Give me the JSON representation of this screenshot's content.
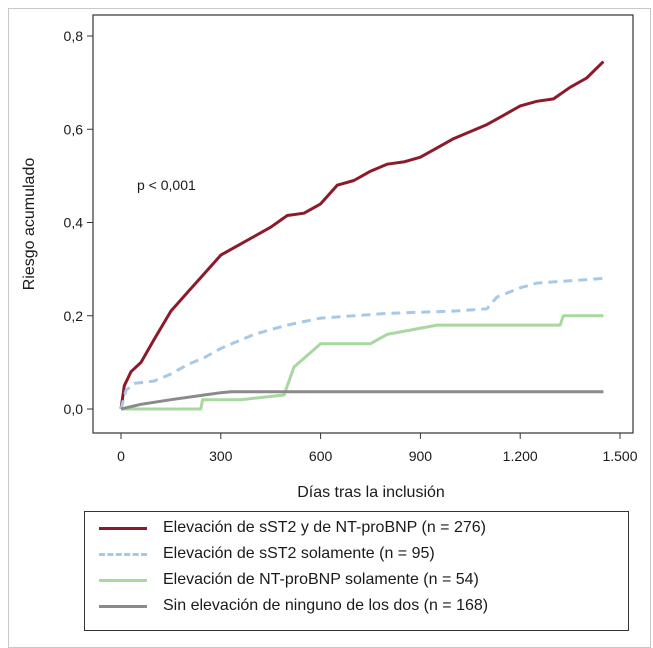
{
  "chart_data": {
    "type": "line",
    "xlabel": "Días tras la inclusión",
    "ylabel": "Riesgo acumulado",
    "annotation": "p < 0,001",
    "xlim": [
      0,
      1500
    ],
    "ylim": [
      0,
      0.8
    ],
    "x_ticks": [
      0,
      300,
      600,
      900,
      1200,
      1500
    ],
    "x_tick_labels": [
      "0",
      "300",
      "600",
      "900",
      "1.200",
      "1.500"
    ],
    "y_ticks": [
      0,
      0.2,
      0.4,
      0.6,
      0.8
    ],
    "y_tick_labels": [
      "0,0",
      "0,2",
      "0,4",
      "0,6",
      "0,8"
    ],
    "legend_position": "bottom",
    "series": [
      {
        "name": "Elevación de sST2 y de NT-proBNP (n = 276)",
        "color": "#8b1a2b",
        "style": "solid",
        "points": [
          [
            0,
            0
          ],
          [
            10,
            0.05
          ],
          [
            30,
            0.08
          ],
          [
            60,
            0.1
          ],
          [
            100,
            0.15
          ],
          [
            150,
            0.21
          ],
          [
            200,
            0.25
          ],
          [
            250,
            0.29
          ],
          [
            300,
            0.33
          ],
          [
            350,
            0.35
          ],
          [
            400,
            0.37
          ],
          [
            450,
            0.39
          ],
          [
            500,
            0.415
          ],
          [
            550,
            0.42
          ],
          [
            600,
            0.44
          ],
          [
            650,
            0.48
          ],
          [
            700,
            0.49
          ],
          [
            750,
            0.51
          ],
          [
            800,
            0.525
          ],
          [
            850,
            0.53
          ],
          [
            900,
            0.54
          ],
          [
            950,
            0.56
          ],
          [
            1000,
            0.58
          ],
          [
            1050,
            0.595
          ],
          [
            1100,
            0.61
          ],
          [
            1150,
            0.63
          ],
          [
            1200,
            0.65
          ],
          [
            1250,
            0.66
          ],
          [
            1300,
            0.665
          ],
          [
            1350,
            0.69
          ],
          [
            1400,
            0.71
          ],
          [
            1450,
            0.745
          ]
        ]
      },
      {
        "name": "Elevación de sST2 solamente (n = 95)",
        "color": "#a7c9e8",
        "style": "dashed",
        "points": [
          [
            0,
            0
          ],
          [
            15,
            0.04
          ],
          [
            40,
            0.055
          ],
          [
            100,
            0.06
          ],
          [
            150,
            0.075
          ],
          [
            200,
            0.095
          ],
          [
            250,
            0.11
          ],
          [
            300,
            0.13
          ],
          [
            350,
            0.145
          ],
          [
            400,
            0.16
          ],
          [
            450,
            0.17
          ],
          [
            500,
            0.18
          ],
          [
            600,
            0.195
          ],
          [
            700,
            0.2
          ],
          [
            800,
            0.205
          ],
          [
            1000,
            0.21
          ],
          [
            1100,
            0.215
          ],
          [
            1130,
            0.24
          ],
          [
            1200,
            0.26
          ],
          [
            1250,
            0.27
          ],
          [
            1350,
            0.275
          ],
          [
            1450,
            0.28
          ]
        ]
      },
      {
        "name": "Elevación de NT-proBNP solamente (n = 54)",
        "color": "#a8d8a0",
        "style": "solid",
        "points": [
          [
            0,
            0
          ],
          [
            240,
            0
          ],
          [
            245,
            0.02
          ],
          [
            360,
            0.02
          ],
          [
            490,
            0.03
          ],
          [
            505,
            0.06
          ],
          [
            520,
            0.09
          ],
          [
            600,
            0.14
          ],
          [
            750,
            0.14
          ],
          [
            800,
            0.16
          ],
          [
            950,
            0.18
          ],
          [
            1050,
            0.18
          ],
          [
            1150,
            0.18
          ],
          [
            1320,
            0.18
          ],
          [
            1330,
            0.2
          ],
          [
            1450,
            0.2
          ]
        ]
      },
      {
        "name": "Sin elevación de ninguno de los dos (n = 168)",
        "color": "#8a8a8a",
        "style": "solid",
        "points": [
          [
            0,
            0
          ],
          [
            60,
            0.01
          ],
          [
            150,
            0.02
          ],
          [
            250,
            0.03
          ],
          [
            300,
            0.035
          ],
          [
            330,
            0.037
          ],
          [
            1450,
            0.037
          ]
        ]
      }
    ]
  }
}
